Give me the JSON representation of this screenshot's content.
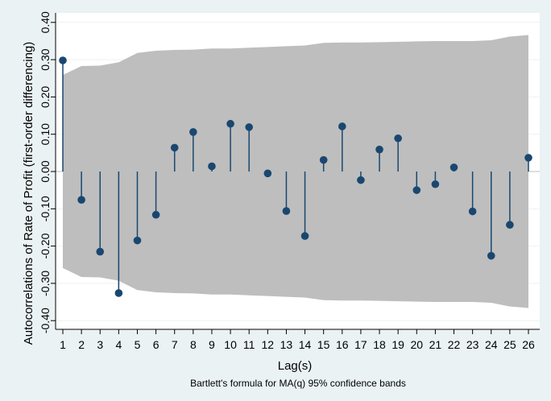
{
  "chart_data": {
    "type": "stem",
    "title": "",
    "xlabel": "Lag(s)",
    "ylabel": "Autocorrelations of Rate of Profit (first-order differencing)",
    "note": "Bartlett's formula for MA(q) 95% confidence bands",
    "xlim": [
      1,
      26
    ],
    "ylim": [
      -0.4,
      0.4
    ],
    "x_ticks": [
      1,
      2,
      3,
      4,
      5,
      6,
      7,
      8,
      9,
      10,
      11,
      12,
      13,
      14,
      15,
      16,
      17,
      18,
      19,
      20,
      21,
      22,
      23,
      24,
      25,
      26
    ],
    "y_ticks": [
      "-0.40",
      "-0.30",
      "-0.20",
      "-0.10",
      "0.00",
      "0.10",
      "0.20",
      "0.30",
      "0.40"
    ],
    "grid": true,
    "series": [
      {
        "lags": [
          1,
          2,
          3,
          4,
          5,
          6,
          7,
          8,
          9,
          10,
          11,
          12,
          13,
          14,
          15,
          16,
          17,
          18,
          19,
          20,
          21,
          22,
          23,
          24,
          25,
          26
        ],
        "values": [
          0.298,
          -0.076,
          -0.215,
          -0.326,
          -0.185,
          -0.116,
          0.064,
          0.106,
          0.014,
          0.128,
          0.119,
          -0.005,
          -0.106,
          -0.173,
          0.031,
          0.121,
          -0.023,
          0.059,
          0.089,
          -0.05,
          -0.034,
          0.011,
          -0.107,
          -0.226,
          -0.143,
          0.037
        ]
      }
    ],
    "confidence_band": [
      0.259,
      0.283,
      0.284,
      0.293,
      0.318,
      0.324,
      0.326,
      0.327,
      0.33,
      0.33,
      0.332,
      0.334,
      0.336,
      0.338,
      0.345,
      0.346,
      0.346,
      0.347,
      0.348,
      0.349,
      0.35,
      0.35,
      0.35,
      0.352,
      0.362,
      0.366
    ],
    "colors": {
      "background": "#eaf2f3",
      "plot_area": "#ffffff",
      "band": "#bebebe",
      "stem": "#1a476f",
      "grid": "#eaf2f3"
    }
  }
}
